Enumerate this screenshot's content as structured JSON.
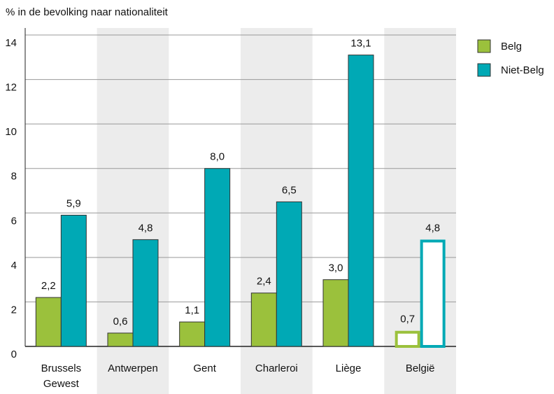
{
  "chart_data": {
    "type": "bar",
    "title": "% in de bevolking naar nationaliteit",
    "categories": [
      "Brussels Gewest",
      "Antwerpen",
      "Gent",
      "Charleroi",
      "Liège",
      "België"
    ],
    "series": [
      {
        "name": "Belg",
        "color": "#9bc13c",
        "values": [
          2.2,
          0.6,
          1.1,
          2.4,
          3.0,
          0.7
        ],
        "value_labels": [
          "2,2",
          "0,6",
          "1,1",
          "2,4",
          "3,0",
          "0,7"
        ]
      },
      {
        "name": "Niet-Belg",
        "color": "#00a9b5",
        "values": [
          5.9,
          4.8,
          8.0,
          6.5,
          13.1,
          4.8
        ],
        "value_labels": [
          "5,9",
          "4,8",
          "8,0",
          "6,5",
          "13,1",
          "4,8"
        ]
      }
    ],
    "ylim": [
      0,
      14
    ],
    "yticks": [
      0,
      2,
      4,
      6,
      8,
      10,
      12,
      14
    ],
    "grid": true,
    "legend": "right",
    "band_shading": "#ececec",
    "outline_last": true
  }
}
